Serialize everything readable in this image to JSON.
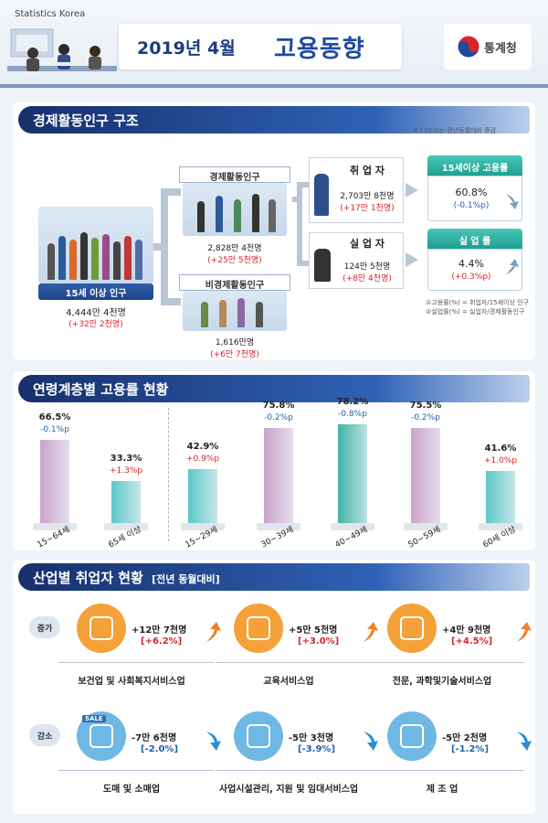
{
  "header": {
    "org_name": "Statistics Korea",
    "date": "2019년 4월",
    "title": "고용동향",
    "logo_text": "통계청",
    "colors": {
      "navy": "#1e3d7a",
      "accent": "#1e4ba0"
    }
  },
  "structure": {
    "heading": "경제활동인구 구조",
    "note": "※ (   )수치는 전년동월대비 증감",
    "pop15": {
      "label": "15세 이상 인구",
      "value": "4,444만 4천명",
      "change": "(+32만 2천명)"
    },
    "active": {
      "label": "경제활동인구",
      "value": "2,828만 4천명",
      "change": "(+25만 5천명)"
    },
    "inactive": {
      "label": "비경제활동인구",
      "value": "1,616만명",
      "change": "(+6만 7천명)"
    },
    "employed": {
      "label": "취 업 자",
      "value": "2,703만 8천명",
      "change": "(+17만 1천명)"
    },
    "unemployed": {
      "label": "실 업 자",
      "value": "124만 5천명",
      "change": "(+8만 4천명)"
    },
    "emp_rate": {
      "label": "15세이상 고용률",
      "value": "60.8%",
      "change": "(-0.1%p)",
      "direction": "down"
    },
    "unemp_rate": {
      "label": "실 업 률",
      "value": "4.4%",
      "change": "(+0.3%p)",
      "direction": "up"
    },
    "footnote1": "①고용률(%) = 취업자/15세이상 인구",
    "footnote2": "②실업률(%) = 실업자/경제활동인구"
  },
  "age": {
    "heading": "연령계층별 고용률 현황",
    "chart_data": {
      "type": "bar",
      "categories": [
        "15~64세",
        "65세 이상",
        "15~29세",
        "30~39세",
        "40~49세",
        "50~59세",
        "60세 이상"
      ],
      "values": [
        66.5,
        33.3,
        42.9,
        75.8,
        78.2,
        75.5,
        41.6
      ],
      "value_labels": [
        "66.5%",
        "33.3%",
        "42.9%",
        "75.8%",
        "78.2%",
        "75.5%",
        "41.6%"
      ],
      "changes": [
        "-0.1%p",
        "+1.3%p",
        "+0.9%p",
        "-0.2%p",
        "-0.8%p",
        "-0.2%p",
        "+1.0%p"
      ],
      "change_direction": [
        "down",
        "up",
        "up",
        "down",
        "down",
        "down",
        "up"
      ],
      "colors": [
        "#c9a4cc",
        "#5cc7c6",
        "#5cc7c6",
        "#c9a4cc",
        "#3fb3a6",
        "#c9a4cc",
        "#5cc7c6"
      ]
    }
  },
  "industry": {
    "heading": "산업별 취업자 현황",
    "heading_sub": "[전년 동월대비]",
    "increase_tag": "증가",
    "decrease_tag": "감소",
    "increase": [
      {
        "name": "보건업 및 사회복지서비스업",
        "value": "+12만 7천명",
        "change": "[+6.2%]",
        "icon": "medical-kit-icon"
      },
      {
        "name": "교육서비스업",
        "value": "+5만 5천명",
        "change": "[+3.0%]",
        "icon": "clipboard-icon"
      },
      {
        "name": "전문, 과학및기술서비스업",
        "value": "+4만 9천명",
        "change": "[+4.5%]",
        "icon": "test-tube-icon"
      }
    ],
    "decrease": [
      {
        "name": "도매 및 소매업",
        "value": "-7만 6천명",
        "change": "[-2.0%]",
        "icon": "sale-shirt-icon",
        "icon_text": "SALE"
      },
      {
        "name": "사업시설관리, 지원 및 임대서비스업",
        "value": "-5만 3천명",
        "change": "[-3.9%]",
        "icon": "tools-icon"
      },
      {
        "name": "제 조 업",
        "value": "-5만 2천명",
        "change": "[-1.2%]",
        "icon": "gear-icon"
      }
    ]
  }
}
